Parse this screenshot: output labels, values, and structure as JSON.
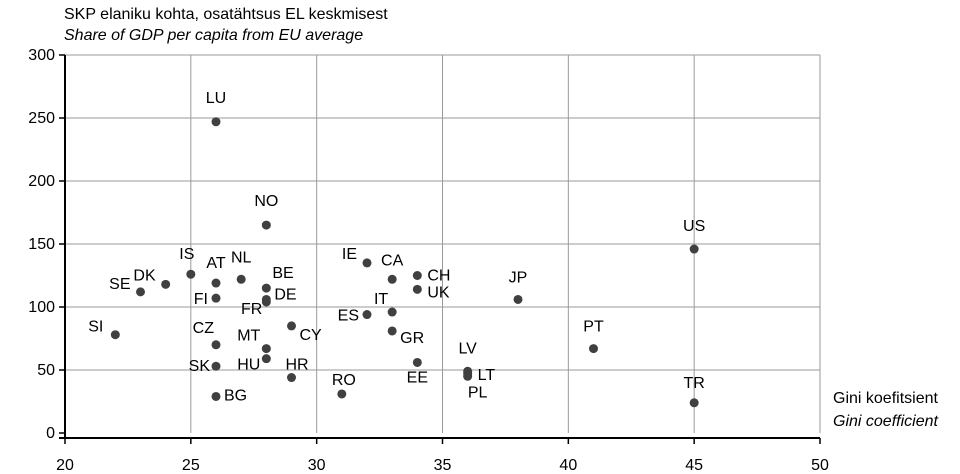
{
  "chart_data": {
    "type": "scatter",
    "ylabel": "SKP elaniku kohta, osatähtsus EL keskmisest",
    "ylabel_en": "Share of GDP per capita from EU average",
    "xlabel": "Gini koefitsient",
    "xlabel_en": "Gini coefficient",
    "xlim": [
      20,
      50
    ],
    "ylim": [
      0,
      300
    ],
    "xticks": [
      20,
      25,
      30,
      35,
      40,
      45,
      50
    ],
    "yticks": [
      0,
      50,
      100,
      150,
      200,
      250,
      300
    ],
    "grid": true,
    "points": [
      {
        "label": "LU",
        "x": 26,
        "y": 247
      },
      {
        "label": "NO",
        "x": 28,
        "y": 165
      },
      {
        "label": "US",
        "x": 45,
        "y": 146
      },
      {
        "label": "IE",
        "x": 32,
        "y": 135
      },
      {
        "label": "IS",
        "x": 25,
        "y": 126
      },
      {
        "label": "CH",
        "x": 34,
        "y": 125
      },
      {
        "label": "CA",
        "x": 33,
        "y": 122
      },
      {
        "label": "NL",
        "x": 27,
        "y": 122
      },
      {
        "label": "AT",
        "x": 26,
        "y": 119
      },
      {
        "label": "DK",
        "x": 24,
        "y": 118
      },
      {
        "label": "BE",
        "x": 28,
        "y": 115
      },
      {
        "label": "UK",
        "x": 34,
        "y": 114
      },
      {
        "label": "SE",
        "x": 23,
        "y": 112
      },
      {
        "label": "FI",
        "x": 26,
        "y": 107
      },
      {
        "label": "JP",
        "x": 38,
        "y": 106
      },
      {
        "label": "DE",
        "x": 28,
        "y": 106
      },
      {
        "label": "FR",
        "x": 28,
        "y": 104
      },
      {
        "label": "IT",
        "x": 33,
        "y": 96
      },
      {
        "label": "ES",
        "x": 32,
        "y": 94
      },
      {
        "label": "CY",
        "x": 29,
        "y": 85
      },
      {
        "label": "GR",
        "x": 33,
        "y": 81
      },
      {
        "label": "SI",
        "x": 22,
        "y": 78
      },
      {
        "label": "CZ",
        "x": 26,
        "y": 70
      },
      {
        "label": "MT",
        "x": 28,
        "y": 67
      },
      {
        "label": "PT",
        "x": 41,
        "y": 67
      },
      {
        "label": "HU",
        "x": 28,
        "y": 59
      },
      {
        "label": "EE",
        "x": 34,
        "y": 56
      },
      {
        "label": "SK",
        "x": 26,
        "y": 53
      },
      {
        "label": "LV",
        "x": 36,
        "y": 49
      },
      {
        "label": "LT",
        "x": 36,
        "y": 47
      },
      {
        "label": "PL",
        "x": 36,
        "y": 45
      },
      {
        "label": "HR",
        "x": 29,
        "y": 44
      },
      {
        "label": "RO",
        "x": 31,
        "y": 31
      },
      {
        "label": "BG",
        "x": 26,
        "y": 29
      },
      {
        "label": "TR",
        "x": 45,
        "y": 24
      }
    ]
  }
}
